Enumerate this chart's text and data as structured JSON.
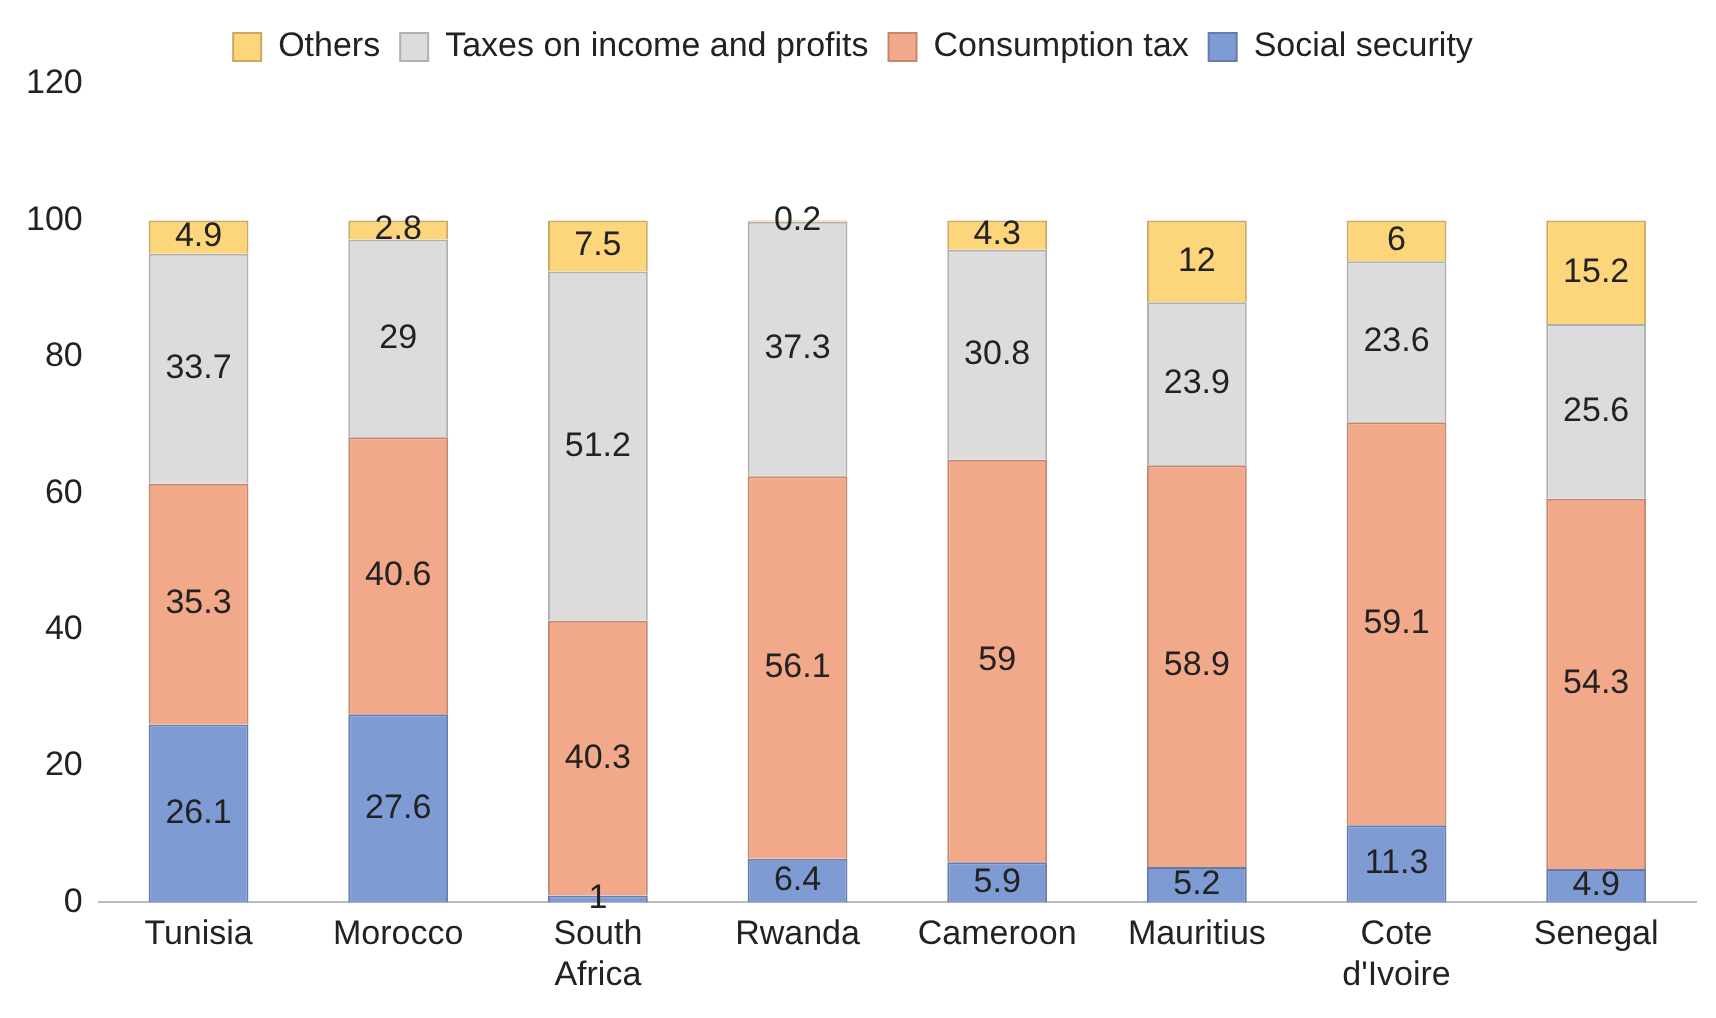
{
  "chart_data": {
    "type": "bar",
    "stacked": true,
    "categories": [
      "Tunisia",
      "Morocco",
      "South Africa",
      "Rwanda",
      "Cameroon",
      "Mauritius",
      "Cote d'Ivoire",
      "Senegal"
    ],
    "series": [
      {
        "name": "Social security",
        "color": "#7f9bd3",
        "values": [
          26.1,
          27.6,
          1,
          6.4,
          5.9,
          5.2,
          11.3,
          4.9
        ]
      },
      {
        "name": "Consumption tax",
        "color": "#f2a98a",
        "values": [
          35.3,
          40.6,
          40.3,
          56.1,
          59,
          58.9,
          59.1,
          54.3
        ]
      },
      {
        "name": "Taxes on income and profits",
        "color": "#dcdcdc",
        "values": [
          33.7,
          29,
          51.2,
          37.3,
          30.8,
          23.9,
          23.6,
          25.6
        ]
      },
      {
        "name": "Others",
        "color": "#fdd57a",
        "values": [
          4.9,
          2.8,
          7.5,
          0.2,
          4.3,
          12,
          6,
          15.2
        ]
      }
    ],
    "ylim": [
      0,
      120
    ],
    "yticks": [
      0,
      20,
      40,
      60,
      80,
      100,
      120
    ],
    "grid": false,
    "legend": "top",
    "data_labels": true
  }
}
